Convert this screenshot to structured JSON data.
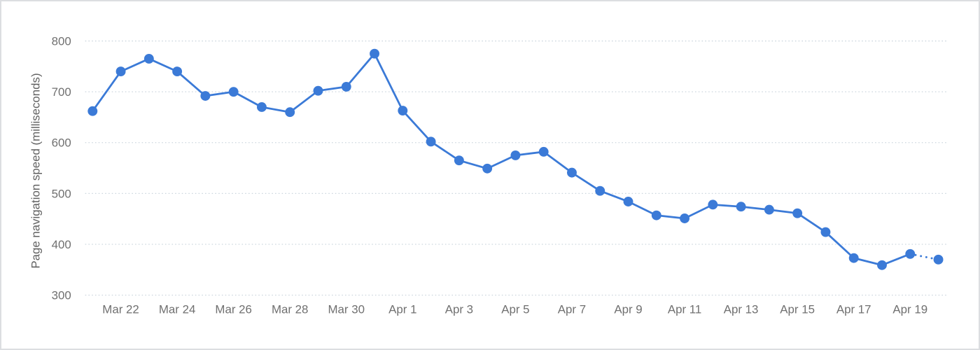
{
  "chart_data": {
    "type": "line",
    "title": "",
    "xlabel": "",
    "ylabel": "Page navigation speed (milliseconds)",
    "x": [
      "Mar 21",
      "Mar 22",
      "Mar 23",
      "Mar 24",
      "Mar 25",
      "Mar 26",
      "Mar 27",
      "Mar 28",
      "Mar 29",
      "Mar 30",
      "Mar 31",
      "Apr 1",
      "Apr 2",
      "Apr 3",
      "Apr 4",
      "Apr 5",
      "Apr 6",
      "Apr 7",
      "Apr 8",
      "Apr 9",
      "Apr 10",
      "Apr 11",
      "Apr 12",
      "Apr 13",
      "Apr 14",
      "Apr 15",
      "Apr 16",
      "Apr 17",
      "Apr 18",
      "Apr 19",
      "Apr 20"
    ],
    "series": [
      {
        "name": "Page navigation speed",
        "values": [
          662,
          740,
          765,
          740,
          692,
          700,
          670,
          660,
          702,
          710,
          775,
          663,
          602,
          565,
          549,
          575,
          582,
          541,
          505,
          484,
          457,
          451,
          478,
          474,
          468,
          461,
          424,
          373,
          359,
          381,
          370
        ]
      }
    ],
    "x_tick_labels": [
      "Mar 22",
      "Mar 24",
      "Mar 26",
      "Mar 28",
      "Mar 30",
      "Apr 1",
      "Apr 3",
      "Apr 5",
      "Apr 7",
      "Apr 9",
      "Apr 11",
      "Apr 13",
      "Apr 15",
      "Apr 17",
      "Apr 19"
    ],
    "y_ticks": [
      800,
      700,
      600,
      500,
      400,
      300
    ],
    "ylim": [
      300,
      800
    ],
    "grid": "horizontal-dotted",
    "legend": "none",
    "last_segment_style": "dotted",
    "marker_style": "filled-circle",
    "colors": {
      "line": "#3b7ad7",
      "marker": "#3b7ad7",
      "grid": "#ccd6de",
      "tick_text": "#707070",
      "axis_title_text": "#616161",
      "background": "#ffffff",
      "frame_border": "#dcdee1"
    }
  }
}
